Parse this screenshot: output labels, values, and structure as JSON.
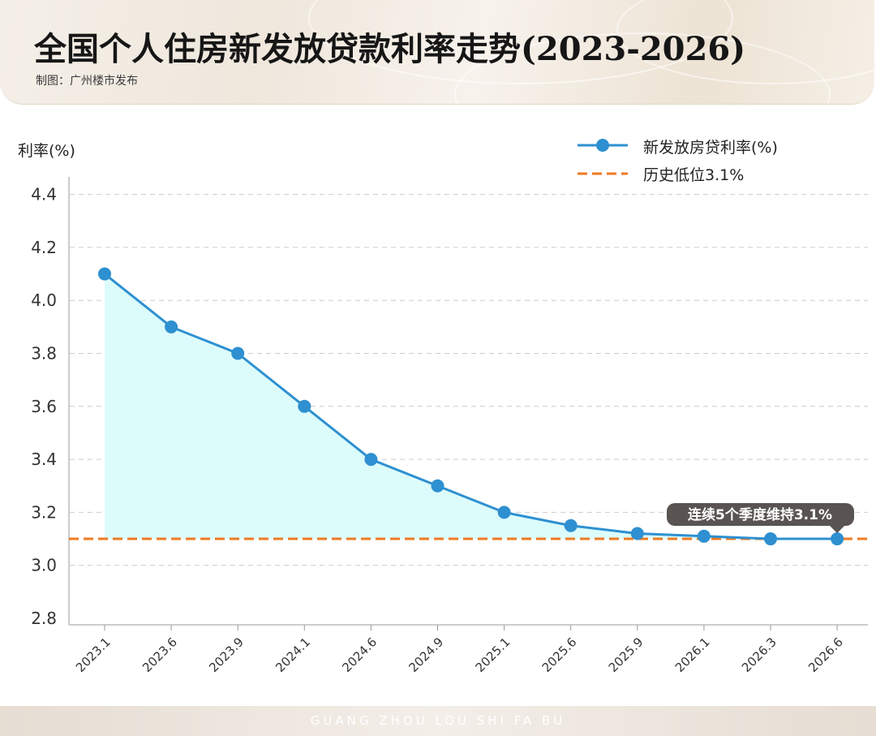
{
  "header": {
    "title": "全国个人住房新发放贷款利率走势(2023-2026)",
    "credit": "制图：广州楼市发布"
  },
  "footer": {
    "text": "GUANG ZHOU LOU SHI FA BU"
  },
  "colors": {
    "line": "#2e90d1",
    "fill": "#dcfcfc",
    "reference": "#ef7a22",
    "grid": "#cccccc",
    "callout_bg": "#595452"
  },
  "chart_data": {
    "type": "line",
    "title": "全国个人住房新发放贷款利率走势(2023-2026)",
    "ylabel": "利率(%)",
    "xlabel": "",
    "ylim": [
      2.8,
      4.4
    ],
    "yticks": [
      "2.8",
      "3.0",
      "3.2",
      "3.4",
      "3.6",
      "3.8",
      "4.0",
      "4.2",
      "4.4"
    ],
    "categories": [
      "2023.1",
      "2023.6",
      "2023.9",
      "2024.1",
      "2024.6",
      "2024.9",
      "2025.1",
      "2025.6",
      "2025.9",
      "2026.1",
      "2026.3",
      "2026.6"
    ],
    "series": [
      {
        "name": "新发放房贷利率(%)",
        "values": [
          4.1,
          3.9,
          3.8,
          3.6,
          3.4,
          3.3,
          3.2,
          3.15,
          3.12,
          3.11,
          3.1,
          3.1
        ]
      }
    ],
    "reference_line": {
      "name": "历史低位3.1%",
      "value": 3.1
    },
    "annotation": {
      "text": "连续5个季度维持3.1%",
      "category": "2026.6"
    },
    "grid": true,
    "legend": "top-right"
  }
}
